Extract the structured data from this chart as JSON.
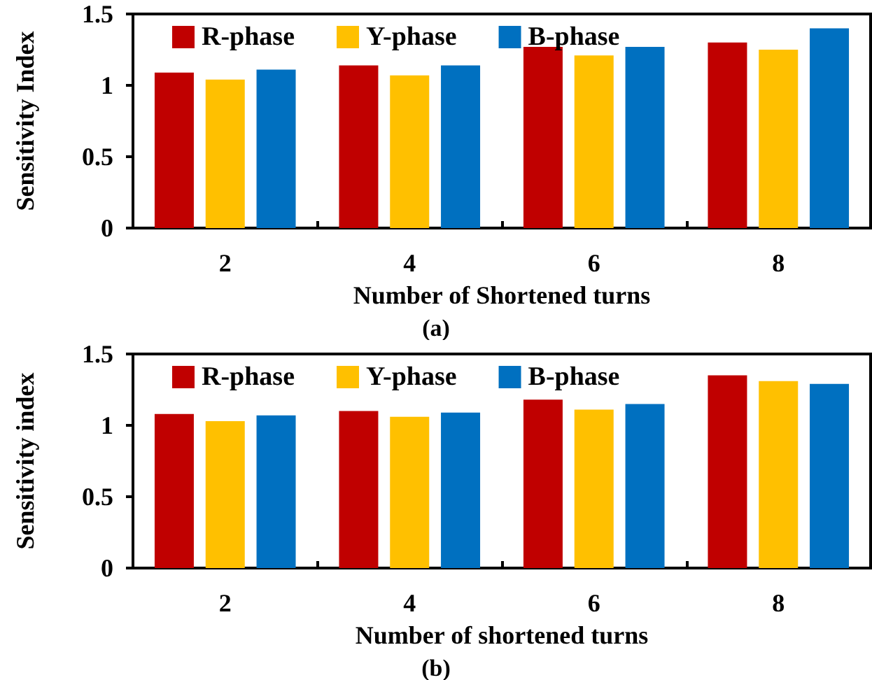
{
  "chart_data": [
    {
      "type": "bar",
      "xlabel": "Number of Shortened turns",
      "ylabel": "Sensitivity Index",
      "annotations": [
        "(a)"
      ],
      "categories": [
        "2",
        "4",
        "6",
        "8"
      ],
      "series": [
        {
          "name": "R-phase",
          "color": "#c00000",
          "values": [
            1.09,
            1.14,
            1.27,
            1.3
          ]
        },
        {
          "name": "Y-phase",
          "color": "#ffc000",
          "values": [
            1.04,
            1.07,
            1.21,
            1.25
          ]
        },
        {
          "name": "B-phase",
          "color": "#0070c0",
          "values": [
            1.11,
            1.14,
            1.27,
            1.4
          ]
        }
      ],
      "ylim": [
        0,
        1.5
      ],
      "yticks": [
        0,
        0.5,
        1,
        1.5
      ],
      "grid": false,
      "legend": "top"
    },
    {
      "type": "bar",
      "xlabel": "Number of shortened turns",
      "ylabel": "Sensitivity index",
      "annotations": [
        "(b)"
      ],
      "categories": [
        "2",
        "4",
        "6",
        "8"
      ],
      "series": [
        {
          "name": "R-phase",
          "color": "#c00000",
          "values": [
            1.08,
            1.1,
            1.18,
            1.35
          ]
        },
        {
          "name": "Y-phase",
          "color": "#ffc000",
          "values": [
            1.03,
            1.06,
            1.11,
            1.31
          ]
        },
        {
          "name": "B-phase",
          "color": "#0070c0",
          "values": [
            1.07,
            1.09,
            1.15,
            1.29
          ]
        }
      ],
      "ylim": [
        0,
        1.5
      ],
      "yticks": [
        0,
        0.5,
        1,
        1.5
      ],
      "grid": false,
      "legend": "top"
    }
  ]
}
